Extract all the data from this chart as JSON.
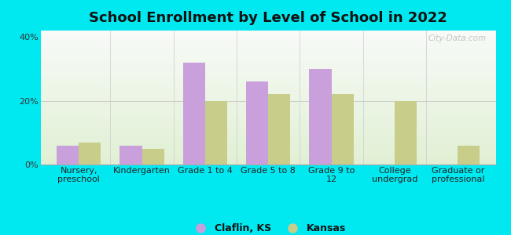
{
  "title": "School Enrollment by Level of School in 2022",
  "categories": [
    "Nursery,\npreschool",
    "Kindergarten",
    "Grade 1 to 4",
    "Grade 5 to 8",
    "Grade 9 to\n12",
    "College\nundergrad",
    "Graduate or\nprofessional"
  ],
  "claflin_values": [
    6,
    6,
    32,
    26,
    30,
    0,
    0
  ],
  "kansas_values": [
    7,
    5,
    20,
    22,
    22,
    20,
    6
  ],
  "claflin_color": "#c9a0dc",
  "kansas_color": "#c8cd8a",
  "background_outer": "#00e8f0",
  "ylim": [
    0,
    42
  ],
  "yticks": [
    0,
    20,
    40
  ],
  "ytick_labels": [
    "0%",
    "20%",
    "40%"
  ],
  "bar_width": 0.35,
  "legend_labels": [
    "Claflin, KS",
    "Kansas"
  ],
  "watermark": "City-Data.com",
  "title_fontsize": 13,
  "tick_fontsize": 8
}
